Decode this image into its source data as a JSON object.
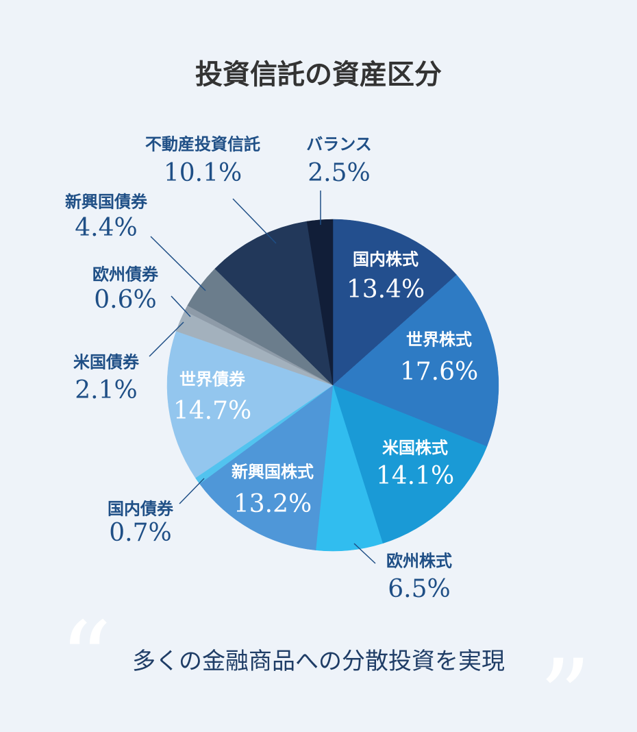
{
  "chart_data": {
    "type": "pie",
    "title": "投資信託の資産区分",
    "categories": [
      "国内株式",
      "世界株式",
      "米国株式",
      "欧州株式",
      "新興国株式",
      "国内債券",
      "世界債券",
      "米国債券",
      "欧州債券",
      "新興国債券",
      "不動産投資信託",
      "バランス"
    ],
    "values": [
      13.4,
      17.6,
      14.1,
      6.5,
      13.2,
      0.7,
      14.7,
      2.1,
      0.6,
      4.4,
      10.1,
      2.5
    ],
    "value_labels": [
      "13.4%",
      "17.6%",
      "14.1%",
      "6.5%",
      "13.2%",
      "0.7%",
      "14.7%",
      "2.1%",
      "0.6%",
      "4.4%",
      "10.1%",
      "2.5%"
    ],
    "colors": [
      "#234f8e",
      "#2e7bc4",
      "#1a9ad6",
      "#31bdef",
      "#4f97d8",
      "#52c3ef",
      "#93c6ee",
      "#a3b1bd",
      "#8e9ba8",
      "#6b7d8c",
      "#22385a",
      "#111e38"
    ],
    "caption": "多くの金融商品への分散投資を実現",
    "open_quote": "“",
    "close_quote": "”"
  }
}
